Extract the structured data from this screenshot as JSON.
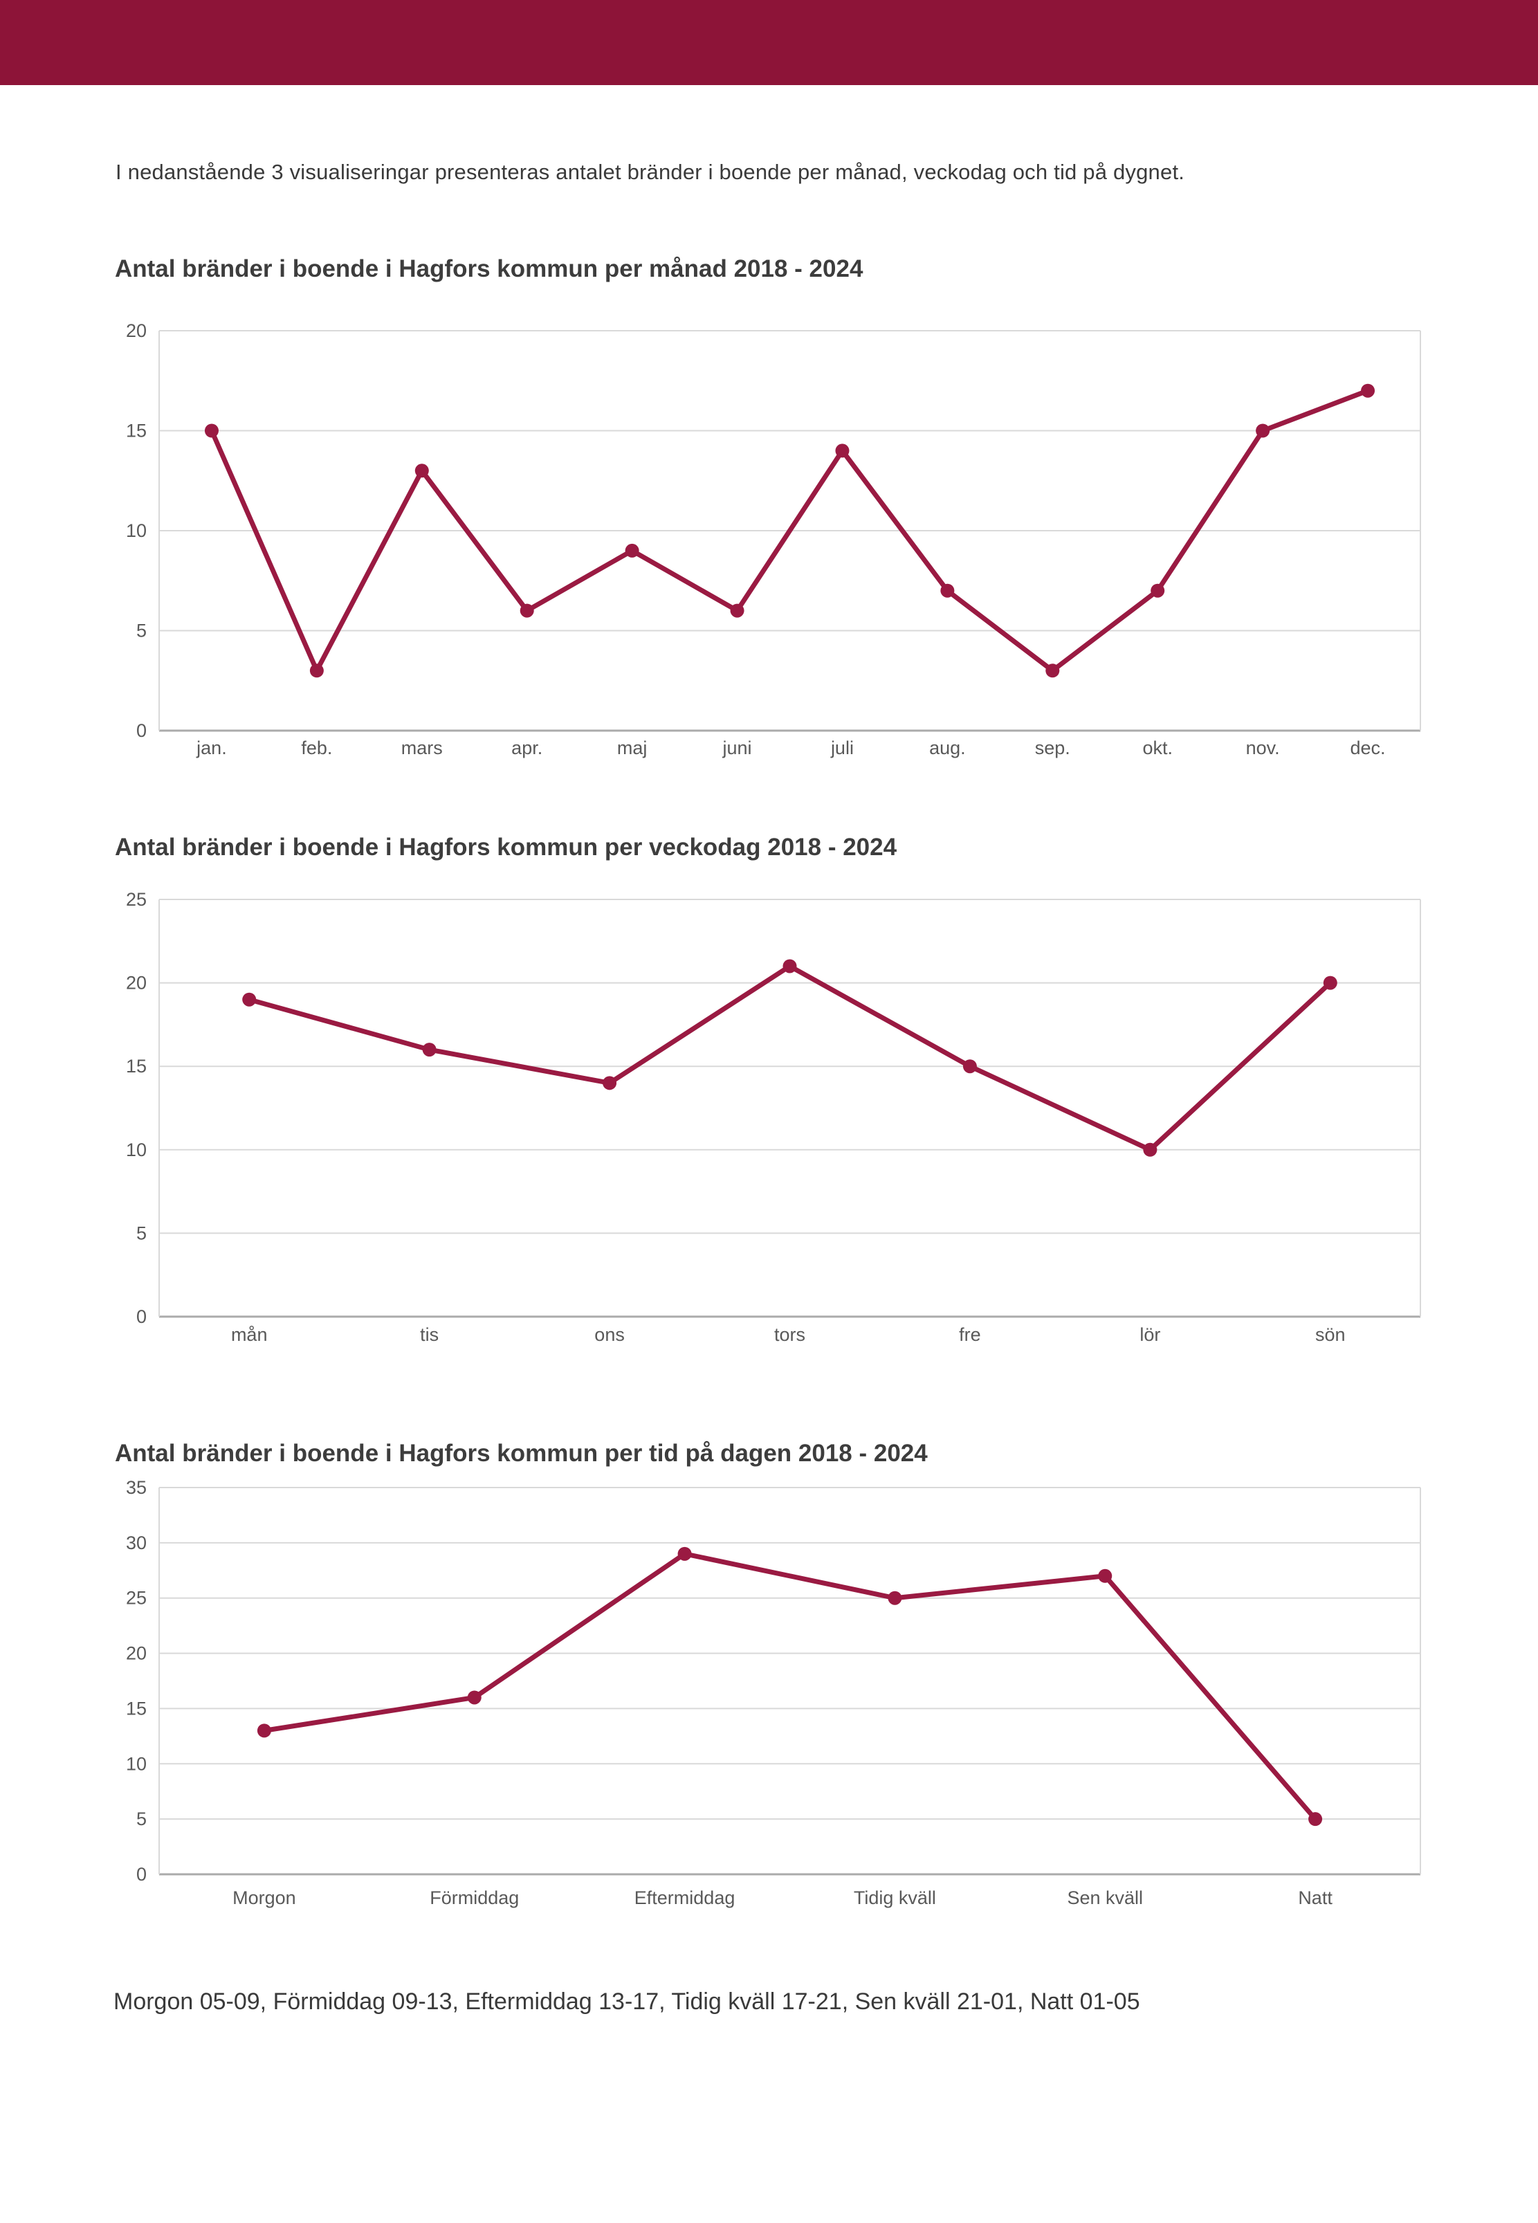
{
  "page": {
    "banner_color": "#8D1438",
    "accent_color": "#9A1A42",
    "gridline_color": "#D9D9D9",
    "axis_line_color": "#ABABAB",
    "tick_label_color": "#595959",
    "intro": "I nedanstående 3 visualiseringar presenteras antalet bränder i boende per månad, veckodag och tid på dygnet.",
    "footer": "Morgon 05-09, Förmiddag 09-13, Eftermiddag 13-17, Tidig kväll 17-21, Sen kväll 21-01, Natt 01-05"
  },
  "chart_data": [
    {
      "type": "line",
      "title": "Antal bränder i boende i Hagfors kommun per månad 2018 - 2024",
      "categories": [
        "jan.",
        "feb.",
        "mars",
        "apr.",
        "maj",
        "juni",
        "juli",
        "aug.",
        "sep.",
        "okt.",
        "nov.",
        "dec."
      ],
      "values": [
        15,
        3,
        13,
        6,
        9,
        6,
        14,
        7,
        3,
        7,
        15,
        17
      ],
      "xlabel": "",
      "ylabel": "",
      "ylim": [
        0,
        20
      ],
      "ytick_step": 5,
      "grid": true,
      "legend": "none",
      "series_color": "#9A1A42"
    },
    {
      "type": "line",
      "title": "Antal bränder i boende i Hagfors kommun per veckodag 2018 - 2024",
      "categories": [
        "mån",
        "tis",
        "ons",
        "tors",
        "fre",
        "lör",
        "sön"
      ],
      "values": [
        19,
        16,
        14,
        21,
        15,
        10,
        20
      ],
      "xlabel": "",
      "ylabel": "",
      "ylim": [
        0,
        25
      ],
      "ytick_step": 5,
      "grid": true,
      "legend": "none",
      "series_color": "#9A1A42"
    },
    {
      "type": "line",
      "title": "Antal bränder i boende i Hagfors kommun per tid på dagen 2018 - 2024",
      "categories": [
        "Morgon",
        "Förmiddag",
        "Eftermiddag",
        "Tidig kväll",
        "Sen kväll",
        "Natt"
      ],
      "values": [
        13,
        16,
        29,
        25,
        27,
        5
      ],
      "xlabel": "",
      "ylabel": "",
      "ylim": [
        0,
        35
      ],
      "ytick_step": 5,
      "grid": true,
      "legend": "none",
      "series_color": "#9A1A42"
    }
  ]
}
